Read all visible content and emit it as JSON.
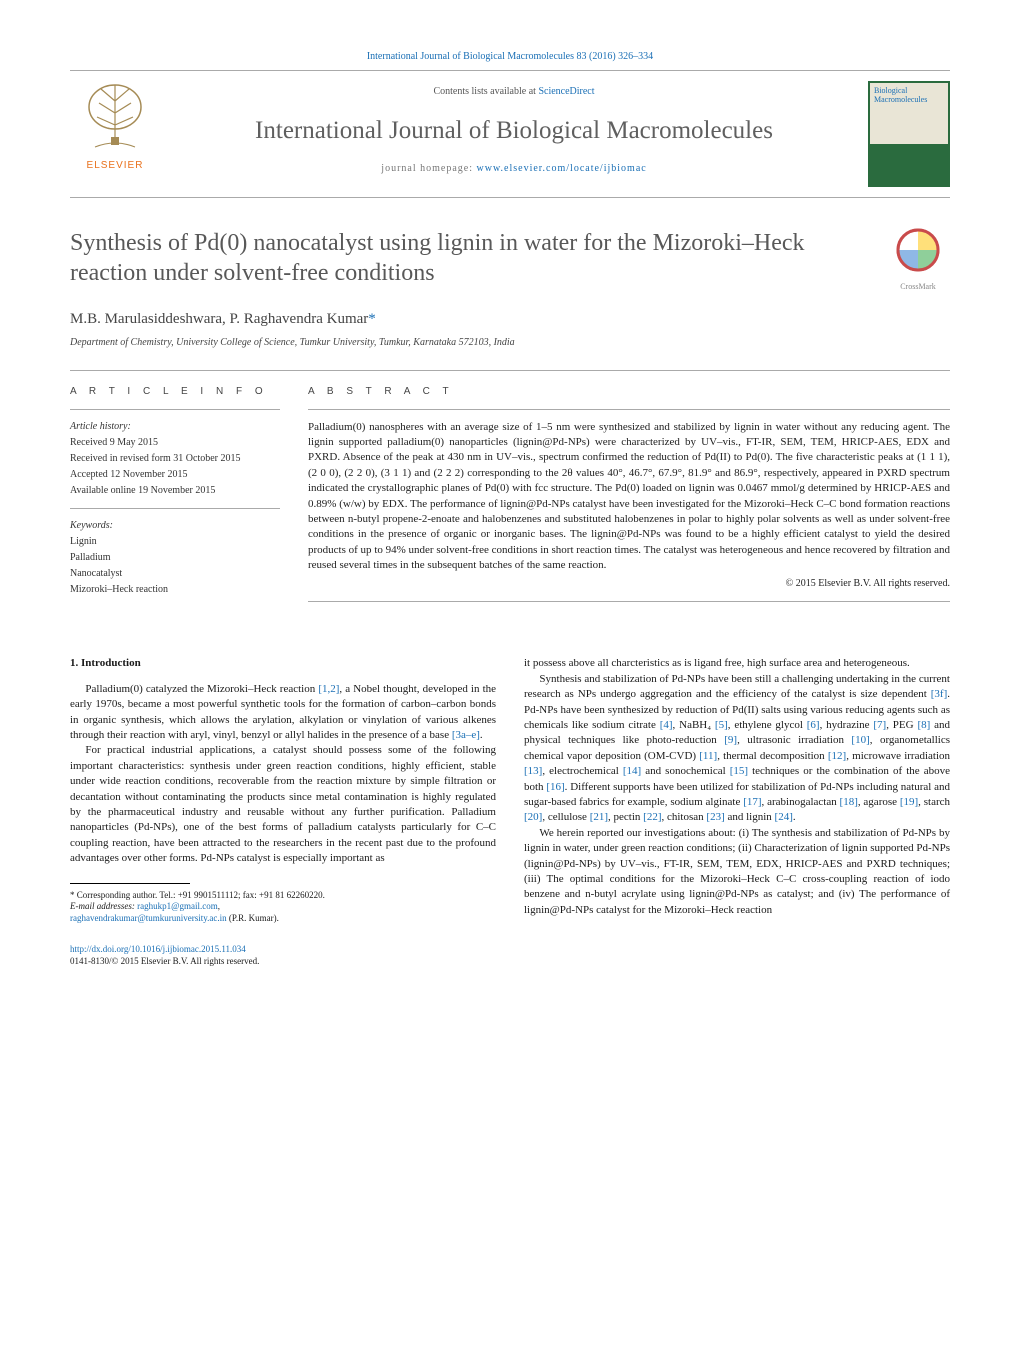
{
  "citation": {
    "text": "International Journal of Biological Macromolecules 83 (2016) 326–334",
    "link_label": "International Journal of Biological Macromolecules 83 (2016) 326–334"
  },
  "header": {
    "contents_prefix": "Contents lists available at ",
    "contents_link": "ScienceDirect",
    "journal_name": "International Journal of Biological Macromolecules",
    "homepage_prefix": "journal homepage: ",
    "homepage_url": "www.elsevier.com/locate/ijbiomac",
    "elsevier_label": "ELSEVIER",
    "cover_text": "Biological\nMacromolecules",
    "crossmark_label": "CrossMark"
  },
  "title": "Synthesis of Pd(0) nanocatalyst using lignin in water for the Mizoroki–Heck reaction under solvent-free conditions",
  "authors_line": "M.B. Marulasiddeshwara, P. Raghavendra Kumar",
  "corr_marker": "*",
  "affiliation": "Department of Chemistry, University College of Science, Tumkur University, Tumkur, Karnataka 572103, India",
  "article_info": {
    "heading": "A R T I C L E   I N F O",
    "history_label": "Article history:",
    "history": [
      "Received 9 May 2015",
      "Received in revised form 31 October 2015",
      "Accepted 12 November 2015",
      "Available online 19 November 2015"
    ],
    "keywords_label": "Keywords:",
    "keywords": [
      "Lignin",
      "Palladium",
      "Nanocatalyst",
      "Mizoroki–Heck reaction"
    ]
  },
  "abstract": {
    "heading": "A B S T R A C T",
    "text": "Palladium(0) nanospheres with an average size of 1–5 nm were synthesized and stabilized by lignin in water without any reducing agent. The lignin supported palladium(0) nanoparticles (lignin@Pd-NPs) were characterized by UV–vis., FT-IR, SEM, TEM, HRICP-AES, EDX and PXRD. Absence of the peak at 430 nm in UV–vis., spectrum confirmed the reduction of Pd(II) to Pd(0). The five characteristic peaks at (1 1 1), (2 0 0), (2 2 0), (3 1 1) and (2 2 2) corresponding to the 2θ values 40°, 46.7°, 67.9°, 81.9° and 86.9°, respectively, appeared in PXRD spectrum indicated the crystallographic planes of Pd(0) with fcc structure. The Pd(0) loaded on lignin was 0.0467 mmol/g determined by HRICP-AES and 0.89% (w/w) by EDX. The performance of lignin@Pd-NPs catalyst have been investigated for the Mizoroki–Heck C–C bond formation reactions between n-butyl propene-2-enoate and halobenzenes and substituted halobenzenes in polar to highly polar solvents as well as under solvent-free conditions in the presence of organic or inorganic bases. The lignin@Pd-NPs was found to be a highly efficient catalyst to yield the desired products of up to 94% under solvent-free conditions in short reaction times. The catalyst was heterogeneous and hence recovered by filtration and reused several times in the subsequent batches of the same reaction.",
    "copyright": "© 2015 Elsevier B.V. All rights reserved."
  },
  "body": {
    "section_number": "1.",
    "section_title": "Introduction",
    "left_paras": [
      "Palladium(0) catalyzed the Mizoroki–Heck reaction [1,2], a Nobel thought, developed in the early 1970s, became a most powerful synthetic tools for the formation of carbon–carbon bonds in organic synthesis, which allows the arylation, alkylation or vinylation of various alkenes through their reaction with aryl, vinyl, benzyl or allyl halides in the presence of a base [3a–e].",
      "For practical industrial applications, a catalyst should possess some of the following important characteristics: synthesis under green reaction conditions, highly efficient, stable under wide reaction conditions, recoverable from the reaction mixture by simple filtration or decantation without contaminating the products since metal contamination is highly regulated by the pharmaceutical industry and reusable without any further purification. Palladium nanoparticles (Pd-NPs), one of the best forms of palladium catalysts particularly for C–C coupling reaction, have been attracted to the researchers in the recent past due to the profound advantages over other forms. Pd-NPs catalyst is especially important as"
    ],
    "right_paras": [
      "it possess above all charcteristics as is ligand free, high surface area and heterogeneous.",
      "Synthesis and stabilization of Pd-NPs have been still a challenging undertaking in the current research as NPs undergo aggregation and the efficiency of the catalyst is size dependent [3f]. Pd-NPs have been synthesized by reduction of Pd(II) salts using various reducing agents such as chemicals like sodium citrate [4], NaBH₄ [5], ethylene glycol [6], hydrazine [7], PEG [8] and physical techniques like photo-reduction [9], ultrasonic irradiation [10], organometallics chemical vapor deposition (OM-CVD) [11], thermal decomposition [12], microwave irradiation [13], electrochemical [14] and sonochemical [15] techniques or the combination of the above both [16]. Different supports have been utilized for stabilization of Pd-NPs including natural and sugar-based fabrics for example, sodium alginate [17], arabinogalactan [18], agarose [19], starch [20], cellulose [21], pectin [22], chitosan [23] and lignin [24].",
      "We herein reported our investigations about: (i) The synthesis and stabilization of Pd-NPs by lignin in water, under green reaction conditions; (ii) Characterization of lignin supported Pd-NPs (lignin@Pd-NPs) by UV–vis., FT-IR, SEM, TEM, EDX, HRICP-AES and PXRD techniques; (iii) The optimal conditions for the Mizoroki–Heck C–C cross-coupling reaction of iodo benzene and n-butyl acrylate using lignin@Pd-NPs as catalyst; and (iv) The performance of lignin@Pd-NPs catalyst for the Mizoroki–Heck reaction"
    ]
  },
  "footnotes": {
    "corr_line": "* Corresponding author. Tel.: +91 9901511112; fax: +91 81 62260220.",
    "email_label": "E-mail addresses: ",
    "email1": "raghukp1@gmail.com",
    "email_sep": ",",
    "email2": "raghavendrakumar@tumkuruniversity.ac.in",
    "email_suffix": " (P.R. Kumar)."
  },
  "doi": {
    "url": "http://dx.doi.org/10.1016/j.ijbiomac.2015.11.034",
    "issn_line": "0141-8130/© 2015 Elsevier B.V. All rights reserved."
  },
  "colors": {
    "link": "#1a6fb5",
    "elsevier_orange": "#e9711c",
    "text_gray": "#5f5f5f",
    "rule": "#aaaaaa",
    "cover_green": "#2a6b3e"
  }
}
